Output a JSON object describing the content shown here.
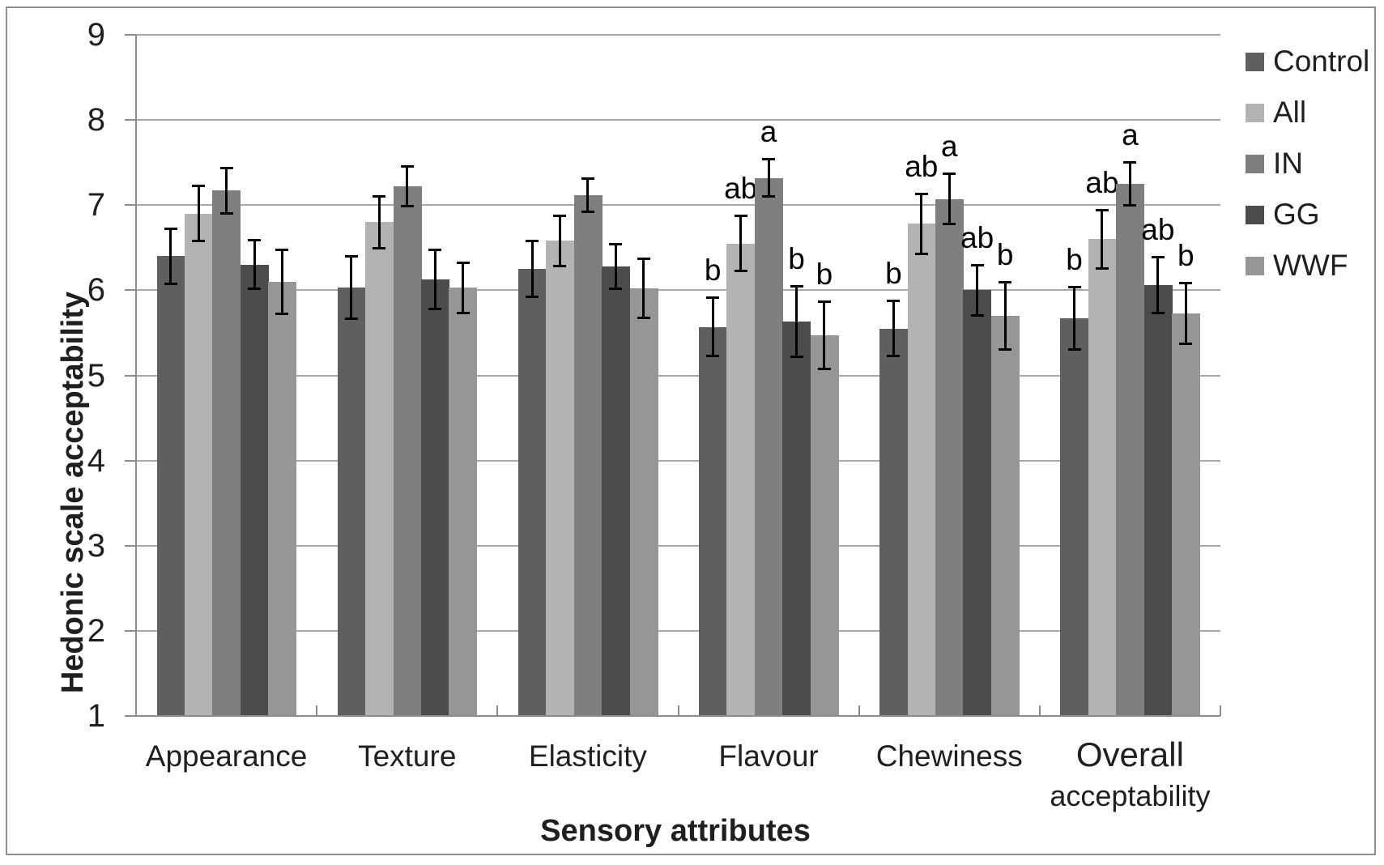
{
  "chart_data": {
    "type": "bar",
    "title": "",
    "ylabel": "Hedonic scale acceptability",
    "xlabel": "Sensory attributes",
    "ylim": [
      1,
      9
    ],
    "yticks": [
      1,
      2,
      3,
      4,
      5,
      6,
      7,
      8,
      9
    ],
    "grid": true,
    "legend_position": "right-top",
    "categories": [
      {
        "label": "Appearance"
      },
      {
        "label": "Texture"
      },
      {
        "label": "Elasticity"
      },
      {
        "label": "Flavour"
      },
      {
        "label": "Chewiness"
      },
      {
        "label": "Overall",
        "label2": "acceptability"
      }
    ],
    "series": [
      {
        "name": "Control",
        "color": "#5f5f5f",
        "values": [
          6.4,
          6.03,
          6.25,
          5.57,
          5.55,
          5.67
        ],
        "errors": [
          0.33,
          0.37,
          0.33,
          0.35,
          0.33,
          0.37
        ],
        "letters": [
          "",
          "",
          "",
          "b",
          "b",
          "b"
        ]
      },
      {
        "name": "All",
        "color": "#b3b3b3",
        "values": [
          6.9,
          6.8,
          6.58,
          6.55,
          6.78,
          6.6
        ],
        "errors": [
          0.33,
          0.31,
          0.3,
          0.33,
          0.36,
          0.35
        ],
        "letters": [
          "",
          "",
          "",
          "ab",
          "ab",
          "ab"
        ]
      },
      {
        "name": "IN",
        "color": "#7f7f7f",
        "values": [
          7.17,
          7.22,
          7.12,
          7.32,
          7.07,
          7.25
        ],
        "errors": [
          0.27,
          0.24,
          0.2,
          0.22,
          0.3,
          0.26
        ],
        "letters": [
          "",
          "",
          "",
          "a",
          "a",
          "a"
        ]
      },
      {
        "name": "GG",
        "color": "#4c4c4c",
        "values": [
          6.3,
          6.13,
          6.28,
          5.63,
          6.0,
          6.06
        ],
        "errors": [
          0.29,
          0.35,
          0.27,
          0.42,
          0.3,
          0.33
        ],
        "letters": [
          "",
          "",
          "",
          "b",
          "ab",
          "ab"
        ]
      },
      {
        "name": "WWF",
        "color": "#969696",
        "values": [
          6.1,
          6.03,
          6.02,
          5.47,
          5.7,
          5.73
        ],
        "errors": [
          0.38,
          0.3,
          0.35,
          0.4,
          0.4,
          0.36
        ],
        "letters": [
          "",
          "",
          "",
          "b",
          "b",
          "b"
        ]
      }
    ]
  }
}
